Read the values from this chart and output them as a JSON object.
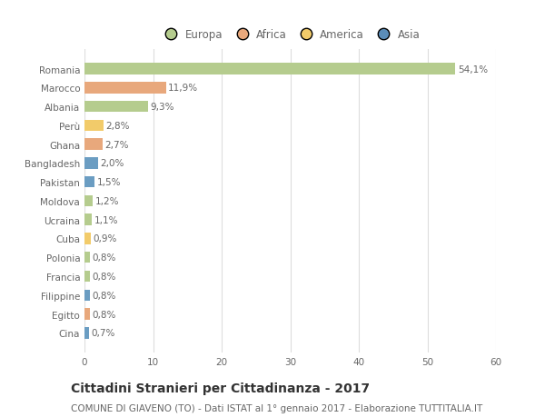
{
  "countries": [
    "Romania",
    "Marocco",
    "Albania",
    "Perù",
    "Ghana",
    "Bangladesh",
    "Pakistan",
    "Moldova",
    "Ucraina",
    "Cuba",
    "Polonia",
    "Francia",
    "Filippine",
    "Egitto",
    "Cina"
  ],
  "values": [
    54.1,
    11.9,
    9.3,
    2.8,
    2.7,
    2.0,
    1.5,
    1.2,
    1.1,
    0.9,
    0.8,
    0.8,
    0.8,
    0.8,
    0.7
  ],
  "labels": [
    "54,1%",
    "11,9%",
    "9,3%",
    "2,8%",
    "2,7%",
    "2,0%",
    "1,5%",
    "1,2%",
    "1,1%",
    "0,9%",
    "0,8%",
    "0,8%",
    "0,8%",
    "0,8%",
    "0,7%"
  ],
  "colors": [
    "#b5cc8e",
    "#e8a87c",
    "#b5cc8e",
    "#f2cb6a",
    "#e8a87c",
    "#6b9dc2",
    "#6b9dc2",
    "#b5cc8e",
    "#b5cc8e",
    "#f2cb6a",
    "#b5cc8e",
    "#b5cc8e",
    "#6b9dc2",
    "#e8a87c",
    "#6b9dc2"
  ],
  "legend_labels": [
    "Europa",
    "Africa",
    "America",
    "Asia"
  ],
  "legend_colors": [
    "#b5cc8e",
    "#e8a87c",
    "#f2cb6a",
    "#5b8db8"
  ],
  "xlim": [
    0,
    60
  ],
  "xticks": [
    0,
    10,
    20,
    30,
    40,
    50,
    60
  ],
  "title": "Cittadini Stranieri per Cittadinanza - 2017",
  "subtitle": "COMUNE DI GIAVENO (TO) - Dati ISTAT al 1° gennaio 2017 - Elaborazione TUTTITALIA.IT",
  "bg_color": "#ffffff",
  "bar_height": 0.6,
  "title_fontsize": 10,
  "subtitle_fontsize": 7.5,
  "label_fontsize": 7.5,
  "tick_fontsize": 7.5,
  "legend_fontsize": 8.5
}
